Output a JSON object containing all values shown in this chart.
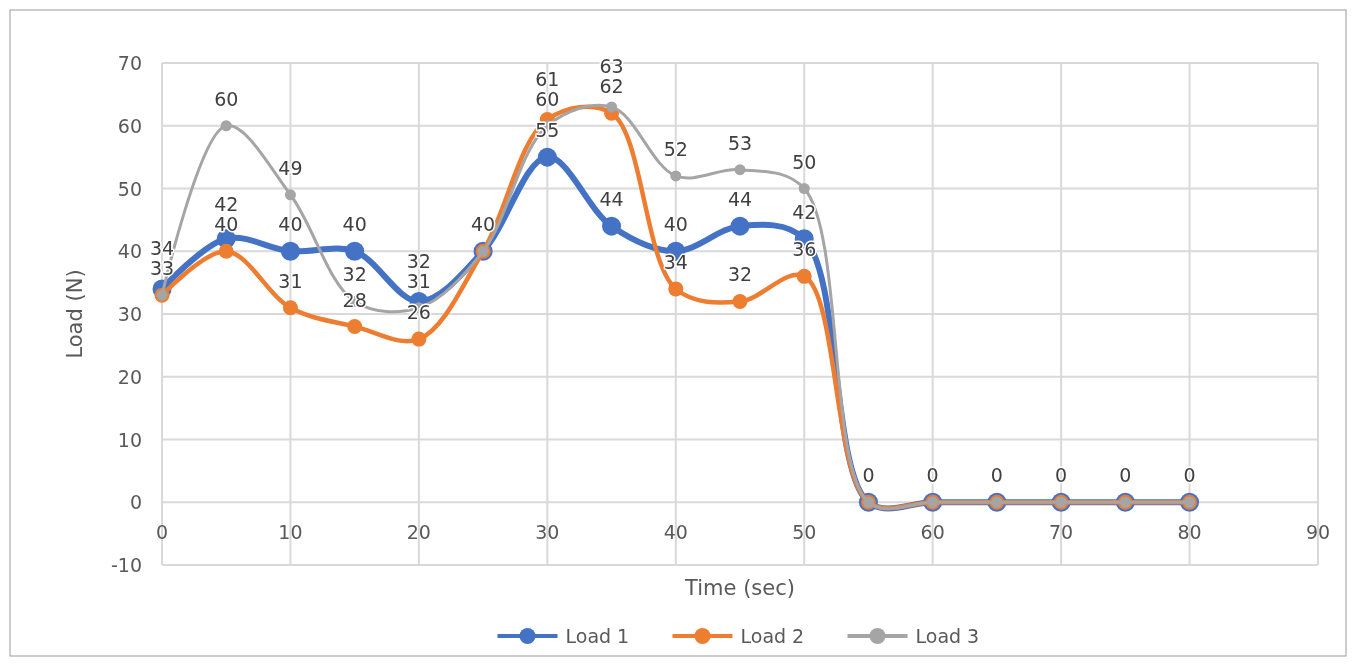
{
  "chart_data": {
    "type": "line",
    "xlabel": "Time (sec)",
    "ylabel": "Load (N)",
    "x": [
      0,
      5,
      10,
      15,
      20,
      25,
      30,
      35,
      40,
      45,
      50,
      55,
      60,
      65,
      70,
      75,
      80
    ],
    "series": [
      {
        "name": "Load 1",
        "color": "#4472c4",
        "values": [
          34,
          42,
          40,
          40,
          32,
          40,
          55,
          44,
          40,
          44,
          42,
          0,
          0,
          0,
          0,
          0,
          0
        ],
        "value_labels": [
          "34",
          "42",
          "40",
          "40",
          "32",
          null,
          "55",
          "44",
          "40",
          "44",
          "42",
          null,
          null,
          null,
          null,
          null,
          null
        ]
      },
      {
        "name": "Load 2",
        "color": "#ed7d31",
        "values": [
          33,
          40,
          31,
          28,
          26,
          40,
          61,
          62,
          34,
          32,
          36,
          0,
          0,
          0,
          0,
          0,
          0
        ],
        "value_labels": [
          null,
          "40",
          "31",
          "28",
          "26",
          null,
          "61",
          "62",
          "34",
          "32",
          "36",
          null,
          null,
          null,
          null,
          null,
          null
        ]
      },
      {
        "name": "Load 3",
        "color": "#a5a5a5",
        "values": [
          33,
          60,
          49,
          32,
          31,
          40,
          60,
          63,
          52,
          53,
          50,
          0,
          0,
          0,
          0,
          0,
          0
        ],
        "value_labels": [
          "33",
          "60",
          "49",
          "32",
          "31",
          "40",
          "60",
          "63",
          "52",
          "53",
          "50",
          "0",
          "0",
          "0",
          "0",
          "0",
          "0"
        ]
      }
    ],
    "xlim": [
      0,
      90
    ],
    "xticks": [
      0,
      10,
      20,
      30,
      40,
      50,
      60,
      70,
      80,
      90
    ],
    "ylim": [
      -10,
      70
    ],
    "yticks": [
      -10,
      0,
      10,
      20,
      30,
      40,
      50,
      60,
      70
    ],
    "grid": true,
    "legend": "bottom",
    "marker": "circle",
    "line_style": "solid"
  }
}
